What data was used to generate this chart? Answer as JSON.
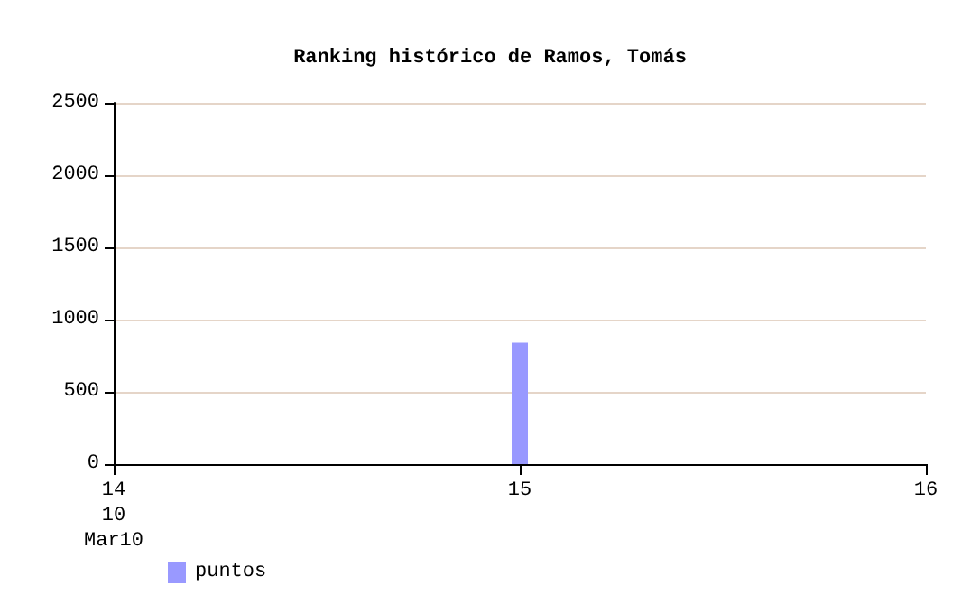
{
  "chart_data": {
    "type": "bar",
    "title": "Ranking histórico de Ramos, Tomás",
    "x": [
      15
    ],
    "series": [
      {
        "name": "puntos",
        "color": "#9999ff",
        "values": [
          840
        ]
      }
    ],
    "xlim": [
      14,
      16
    ],
    "xticks": [
      {
        "value": 14,
        "label": "14\n10\nMar10"
      },
      15,
      16
    ],
    "ylim": [
      0,
      2500
    ],
    "yticks": [
      0,
      500,
      1000,
      1500,
      2000,
      2500
    ],
    "grid": "y",
    "legend": "bottom left"
  }
}
